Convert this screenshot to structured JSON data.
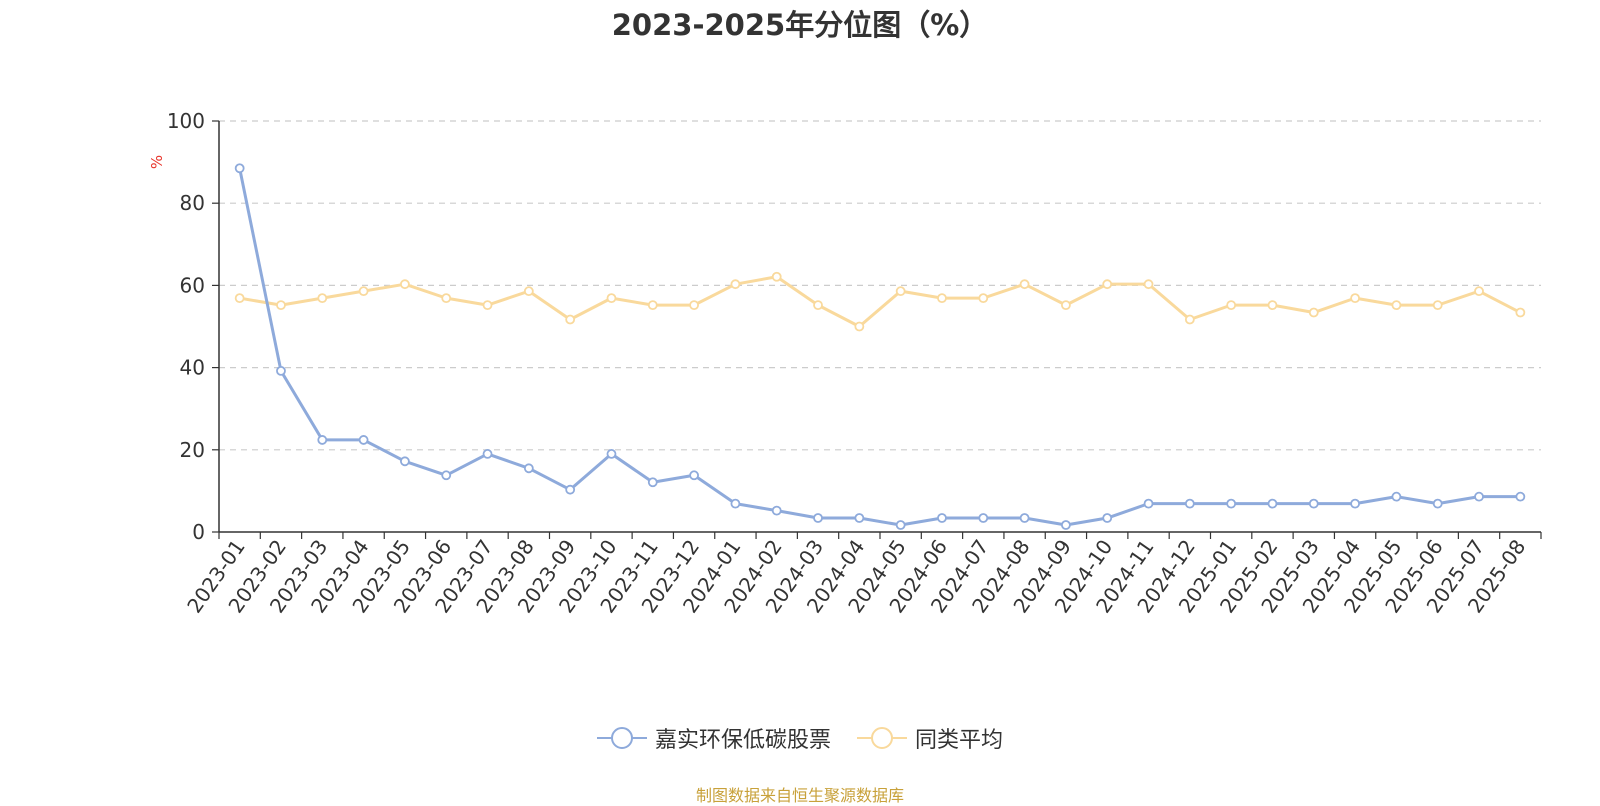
{
  "chart_data": {
    "type": "line",
    "title": "2023-2025年分位图（%）",
    "ylabel": "%",
    "ylim": [
      0,
      100
    ],
    "yticks": [
      0,
      20,
      40,
      60,
      80,
      100
    ],
    "grid": true,
    "legend_position": "bottom",
    "categories": [
      "2023-01",
      "2023-02",
      "2023-03",
      "2023-04",
      "2023-05",
      "2023-06",
      "2023-07",
      "2023-08",
      "2023-09",
      "2023-10",
      "2023-11",
      "2023-12",
      "2024-01",
      "2024-02",
      "2024-03",
      "2024-04",
      "2024-05",
      "2024-06",
      "2024-07",
      "2024-08",
      "2024-09",
      "2024-10",
      "2024-11",
      "2024-12",
      "2025-01",
      "2025-02",
      "2025-03",
      "2025-04",
      "2025-05",
      "2025-06",
      "2025-07",
      "2025-08"
    ],
    "series": [
      {
        "name": "嘉实环保低碳股票",
        "color": "#8eaadb",
        "values": [
          88.5,
          39.2,
          22.4,
          22.4,
          17.2,
          13.8,
          19.0,
          15.5,
          10.3,
          19.0,
          12.1,
          13.8,
          6.9,
          5.2,
          3.4,
          3.4,
          1.7,
          3.4,
          3.4,
          3.4,
          1.7,
          3.4,
          6.9,
          6.9,
          6.9,
          6.9,
          6.9,
          6.9,
          8.6,
          6.9,
          8.6,
          8.6
        ]
      },
      {
        "name": "同类平均",
        "color": "#f9d99c",
        "values": [
          56.9,
          55.2,
          56.9,
          58.6,
          60.3,
          56.9,
          55.2,
          58.6,
          51.7,
          56.9,
          55.2,
          55.2,
          60.3,
          62.1,
          55.2,
          50.0,
          58.6,
          56.9,
          56.9,
          60.3,
          55.2,
          60.3,
          60.3,
          51.7,
          55.2,
          55.2,
          53.4,
          56.9,
          55.2,
          55.2,
          58.6,
          53.4
        ]
      }
    ]
  },
  "footer": {
    "source": "制图数据来自恒生聚源数据库"
  }
}
